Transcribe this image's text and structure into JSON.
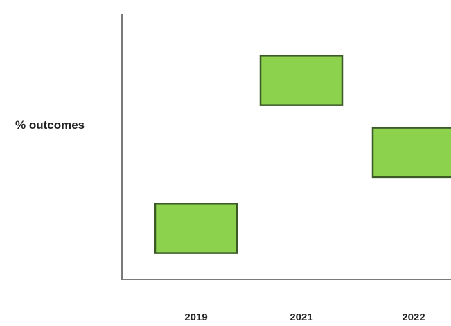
{
  "chart_data": {
    "type": "bar",
    "subtype": "floating-range",
    "title": "",
    "xlabel": "",
    "ylabel": "% outcomes",
    "categories": [
      "2019",
      "2021",
      "2022"
    ],
    "ranges": [
      {
        "category": "2019",
        "low": 0.35,
        "high": 1.0
      },
      {
        "category": "2021",
        "low": 2.3,
        "high": 2.95
      },
      {
        "category": "2022",
        "low": 1.35,
        "high": 2.0
      }
    ],
    "ylim": [
      0,
      3.5
    ],
    "y_ticks_shown": false,
    "grid": false,
    "legend": "none",
    "colors": {
      "fill": "#8dd24d",
      "edge": "#3c5a28",
      "axis": "#7a7a7a"
    }
  }
}
